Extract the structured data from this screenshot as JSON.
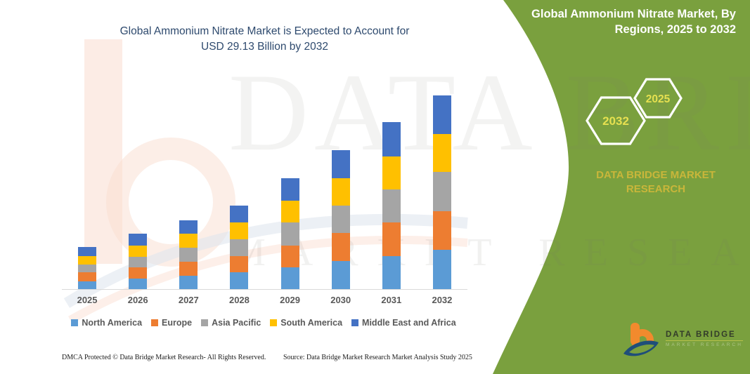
{
  "chart": {
    "title_line1": "Global Ammonium Nitrate Market is Expected to Account for",
    "title_line2": "USD 29.13 Billion by 2032"
  },
  "chart_data": {
    "type": "bar",
    "stacked": true,
    "title": "Global Ammonium Nitrate Market is Expected to Account for USD 29.13 Billion by 2032",
    "units": "USD Billion",
    "categories": [
      "2025",
      "2026",
      "2027",
      "2028",
      "2029",
      "2030",
      "2031",
      "2032"
    ],
    "series": [
      {
        "name": "North America",
        "color": "#5b9bd5",
        "values": [
          1.2,
          1.6,
          2.0,
          2.5,
          3.3,
          4.2,
          5.0,
          5.9
        ]
      },
      {
        "name": "Europe",
        "color": "#ed7d31",
        "values": [
          1.3,
          1.7,
          2.1,
          2.5,
          3.3,
          4.2,
          5.0,
          5.8
        ]
      },
      {
        "name": "Asia Pacific",
        "color": "#a5a5a5",
        "values": [
          1.2,
          1.6,
          2.1,
          2.5,
          3.4,
          4.2,
          5.0,
          5.9
        ]
      },
      {
        "name": "South America",
        "color": "#ffc000",
        "values": [
          1.3,
          1.7,
          2.1,
          2.5,
          3.3,
          4.1,
          5.0,
          5.7
        ]
      },
      {
        "name": "Middle East and Africa",
        "color": "#4472c4",
        "values": [
          1.3,
          1.7,
          2.1,
          2.6,
          3.4,
          4.2,
          5.1,
          5.83
        ]
      }
    ],
    "totals": [
      6.3,
      8.3,
      10.4,
      12.6,
      16.7,
      20.9,
      25.1,
      29.13
    ],
    "ylim": [
      0,
      29.13
    ],
    "xlabel": "",
    "ylabel": "",
    "grid": false,
    "legend_position": "bottom"
  },
  "panel": {
    "title": "Global Ammonium Nitrate Market, By Regions, 2025 to 2032",
    "hexagon_left": "2032",
    "hexagon_right": "2025",
    "brand": "DATA BRIDGE MARKET RESEARCH",
    "green_color": "#7aa03e",
    "hex_text_color": "#e6e050",
    "brand_text_color": "#c9b63a"
  },
  "logo": {
    "name": "DATA BRIDGE",
    "subtitle": "MARKET RESEARCH"
  },
  "watermark": {
    "line1": "DATA BRIDGE",
    "line2": "MARKET RESEARCH"
  },
  "footer": {
    "dmca": "DMCA Protected © Data Bridge Market Research-  All Rights Reserved.",
    "source": "Source: Data Bridge Market Research  Market Analysis Study 2025"
  }
}
